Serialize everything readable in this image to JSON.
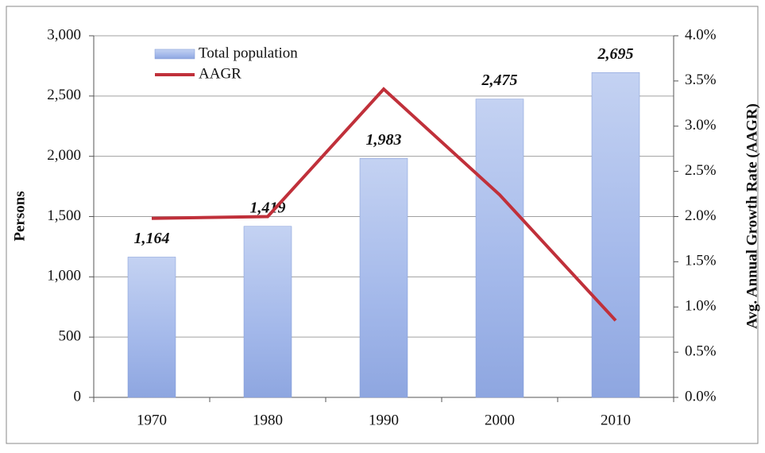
{
  "chart_data": {
    "type": "bar",
    "categories": [
      "1970",
      "1980",
      "1990",
      "2000",
      "2010"
    ],
    "series": [
      {
        "name": "Total population",
        "color": "#8ea6e0",
        "values": [
          1164,
          1419,
          1983,
          2475,
          2695
        ],
        "value_labels": [
          "1,164",
          "1,419",
          "1,983",
          "2,475",
          "2,695"
        ]
      },
      {
        "name": "AAGR",
        "type": "line",
        "axis": "y2",
        "color": "#c0303a",
        "values": [
          1.98,
          2.0,
          3.41,
          2.24,
          0.85
        ]
      }
    ],
    "ylabel": "Persons",
    "y2label": "Avg. Annual Growth Rate (AAGR)",
    "ylim": [
      0,
      3000
    ],
    "yticks": [
      0,
      500,
      {
        "value": 1000,
        "label": "1,000"
      },
      {
        "value": 1500,
        "label": "1,500"
      },
      {
        "value": 2000,
        "label": "2,000"
      },
      {
        "value": 2500,
        "label": "2,500"
      },
      {
        "value": 3000,
        "label": "3,000"
      }
    ],
    "y2lim": [
      0,
      4
    ],
    "y2ticks": [
      {
        "value": 0,
        "label": "0.0%"
      },
      {
        "value": 0.5,
        "label": "0.5%"
      },
      {
        "value": 1,
        "label": "1.0%"
      },
      {
        "value": 1.5,
        "label": "1.5%"
      },
      {
        "value": 2,
        "label": "2.0%"
      },
      {
        "value": 2.5,
        "label": "2.5%"
      },
      {
        "value": 3,
        "label": "3.0%"
      },
      {
        "value": 3.5,
        "label": "3.5%"
      },
      {
        "value": 4,
        "label": "4.0%"
      }
    ],
    "grid": true,
    "legend": "upper left"
  }
}
